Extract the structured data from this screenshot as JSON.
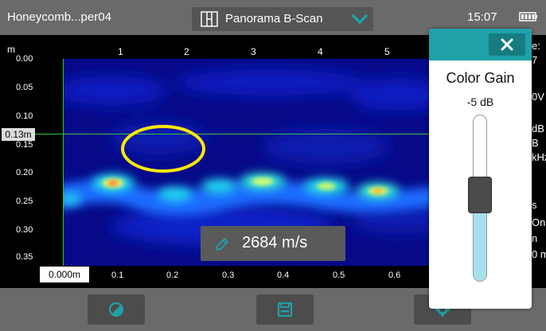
{
  "header": {
    "file_name": "Honeycomb...per04",
    "mode_label": "Panorama B-Scan",
    "time": "15:07"
  },
  "scan": {
    "unit": "m",
    "y_ticks": [
      "0.00",
      "0.05",
      "0.10",
      "0.15",
      "0.20",
      "0.25",
      "0.30",
      "0.35"
    ],
    "x_top_ticks": [
      "1",
      "2",
      "3",
      "4",
      "5"
    ],
    "x_bottom_ticks": [
      "0.1",
      "0.2",
      "0.3",
      "0.4",
      "0.5",
      "0.6"
    ],
    "origin_label": "0.000m",
    "depth_cursor_label": "0.13m",
    "velocity": "2684 m/s",
    "info_fragments": [
      "e:",
      "7",
      "0V",
      "dB",
      "B",
      "kHz",
      "s",
      "On",
      "n",
      "0 m"
    ]
  },
  "gain_panel": {
    "title": "Color Gain",
    "value": "-5 dB",
    "level": 0.52
  },
  "colors": {
    "accent": "#1fa1a8",
    "cursor": "#36c43a",
    "annotation": "#ffe800",
    "slider_fill": "#a8e0ea"
  },
  "icons": {
    "mode": "split-view-icon",
    "chevron": "chevron-down-icon",
    "battery": "battery-icon",
    "pencil": "pencil-icon",
    "close": "close-icon",
    "contrast": "contrast-icon",
    "save": "save-icon",
    "settings": "gear-icon"
  }
}
